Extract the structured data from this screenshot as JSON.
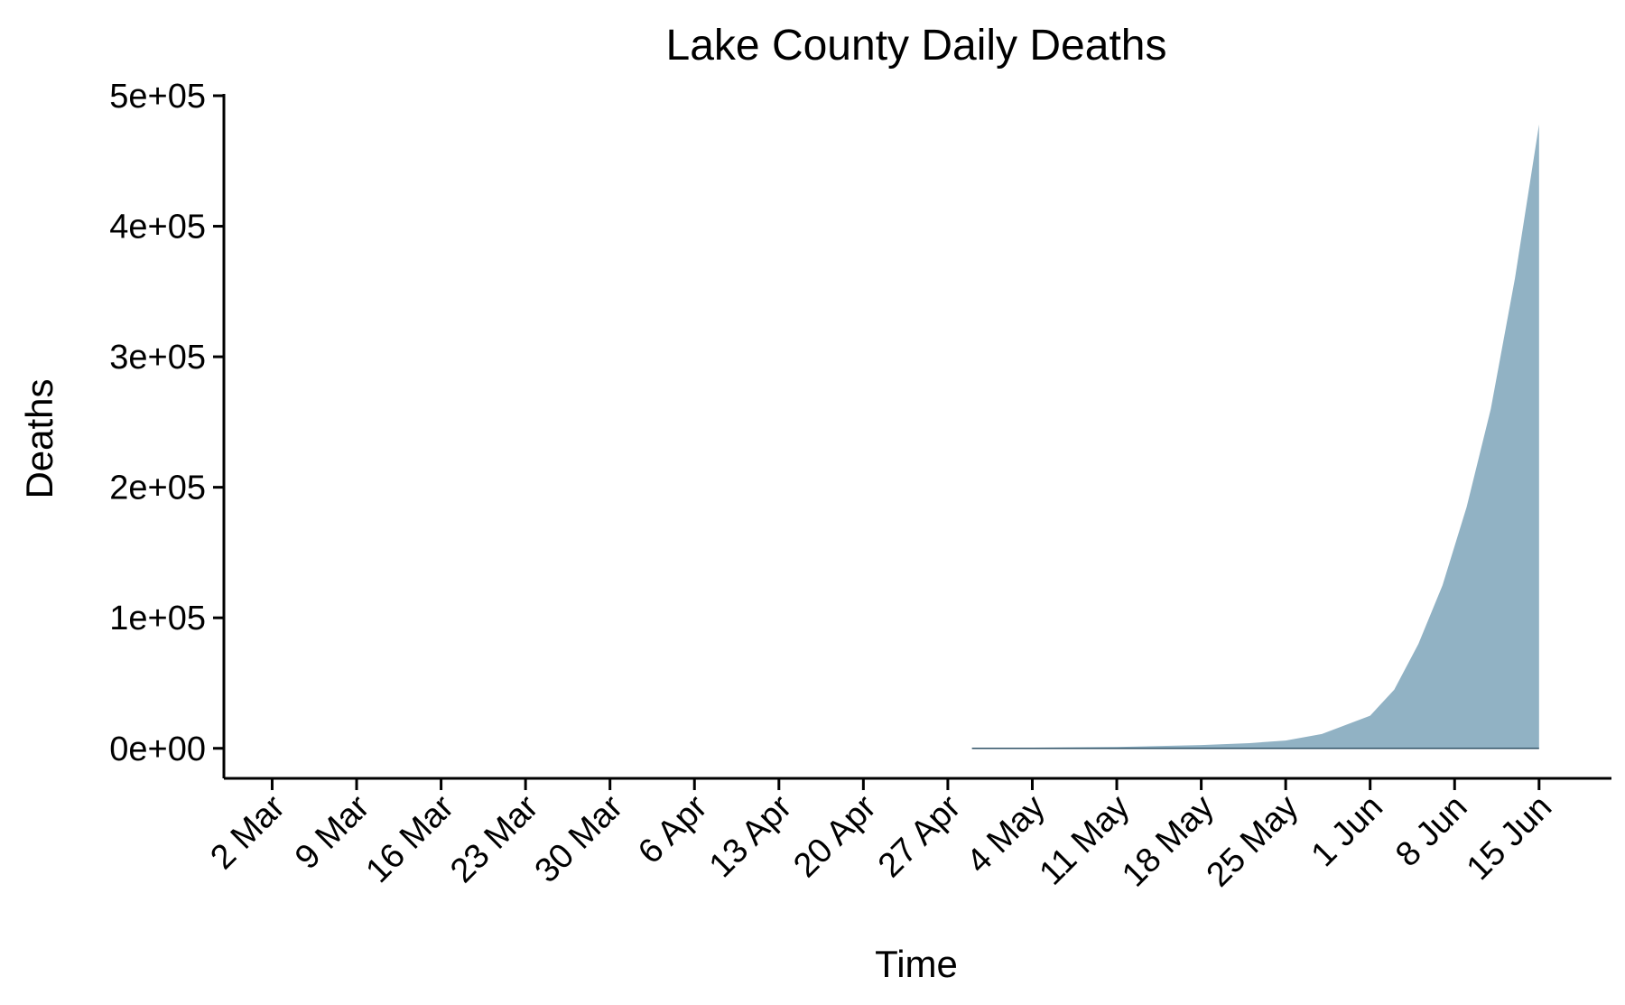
{
  "chart_data": {
    "type": "area",
    "title": "Lake County Daily Deaths",
    "xlabel": "Time",
    "ylabel": "Deaths",
    "xlim": [
      "2020-02-27",
      "2020-06-21"
    ],
    "ylim": [
      -23000,
      500000
    ],
    "x_tick_values": [
      "2020-03-02",
      "2020-03-09",
      "2020-03-16",
      "2020-03-23",
      "2020-03-30",
      "2020-04-06",
      "2020-04-13",
      "2020-04-20",
      "2020-04-27",
      "2020-05-04",
      "2020-05-11",
      "2020-05-18",
      "2020-05-25",
      "2020-06-01",
      "2020-06-08",
      "2020-06-15"
    ],
    "x_tick_labels": [
      "2 Mar",
      "9 Mar",
      "16 Mar",
      "23 Mar",
      "30 Mar",
      "6 Apr",
      "13 Apr",
      "20 Apr",
      "27 Apr",
      "4 May",
      "11 May",
      "18 May",
      "25 May",
      "1 Jun",
      "8 Jun",
      "15 Jun"
    ],
    "y_tick_values": [
      0,
      100000,
      200000,
      300000,
      400000,
      500000
    ],
    "y_tick_labels": [
      "0e+00",
      "1e+05",
      "2e+05",
      "3e+05",
      "4e+05",
      "5e+05"
    ],
    "grid": false,
    "legend": "none",
    "fill_color": "#91b2c4",
    "series": [
      {
        "x": [
          "2020-04-29",
          "2020-05-04",
          "2020-05-11",
          "2020-05-18",
          "2020-05-22",
          "2020-05-25",
          "2020-05-28",
          "2020-06-01",
          "2020-06-03",
          "2020-06-05",
          "2020-06-07",
          "2020-06-09",
          "2020-06-11",
          "2020-06-13",
          "2020-06-15"
        ],
        "y": [
          200,
          500,
          1000,
          2500,
          4000,
          6000,
          11000,
          25000,
          45000,
          80000,
          125000,
          185000,
          260000,
          360000,
          478000
        ]
      }
    ]
  }
}
